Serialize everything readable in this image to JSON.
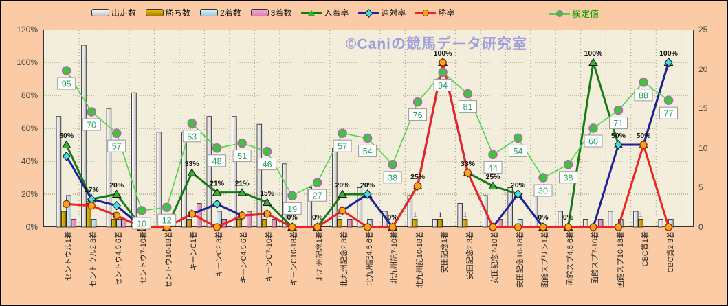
{
  "watermark": "©Caniの競馬データ研究室",
  "legend": [
    {
      "key": "runs",
      "label": "出走数",
      "type": "bar"
    },
    {
      "key": "wins",
      "label": "勝ち数",
      "type": "bar"
    },
    {
      "key": "second",
      "label": "2着数",
      "type": "bar"
    },
    {
      "key": "third",
      "label": "3着数",
      "type": "bar"
    },
    {
      "key": "place",
      "label": "入着率",
      "type": "line",
      "marker": "triangle"
    },
    {
      "key": "quinella",
      "label": "連対率",
      "type": "line",
      "marker": "diamond"
    },
    {
      "key": "winrate",
      "label": "勝率",
      "type": "line",
      "marker": "circle"
    },
    {
      "key": "kentei",
      "label": "検定値",
      "type": "line",
      "marker": "circle-green"
    }
  ],
  "axes": {
    "left_ticks": [
      "0%",
      "20%",
      "40%",
      "60%",
      "80%",
      "100%",
      "120%"
    ],
    "left_values": [
      0,
      20,
      40,
      60,
      80,
      100,
      120
    ],
    "right_ticks": [
      "0",
      "5",
      "10",
      "15",
      "20",
      "25"
    ],
    "right_values": [
      0,
      5,
      10,
      15,
      20,
      25
    ]
  },
  "chart_data": {
    "type": "bar",
    "subtype": "combo-bar-line",
    "categories": [
      "セントウル1着",
      "セントウル2,3着",
      "セントウ4,5,6着",
      "セントウ7-10着",
      "セントウ10-18着",
      "キーンC1着",
      "キーンC2,3着",
      "キーンC4,5,6着",
      "キーンC7-10着",
      "キーンC10-18着",
      "北九州記念1着",
      "北九州記念2,3着",
      "北九州記4,5,6着",
      "北九州記7-10着",
      "北九州記10-18着",
      "安田記念1着",
      "安田記念2,3着",
      "安田記念7-10着",
      "安田記念10-18着",
      "函館スプリン1着",
      "函館スプ4,5,6着",
      "函館スプ7-10着",
      "函館スプ10-18着",
      "CBC賞1着",
      "CBC賞2,3着"
    ],
    "title": "",
    "xlabel": "",
    "ylabel_left": "",
    "ylabel_right": "",
    "ylim_left_pct": [
      0,
      120
    ],
    "ylim_right_count": [
      0,
      25
    ],
    "grid": "horizontal-dotted-and-vertical-dashed",
    "series": [
      {
        "name": "出走数",
        "type": "bar",
        "axis": "right",
        "values": [
          14,
          23,
          15,
          17,
          12,
          12,
          14,
          14,
          13,
          8,
          5,
          10,
          5,
          2,
          4,
          1,
          3,
          4,
          5,
          4,
          2,
          1,
          2,
          2,
          1
        ]
      },
      {
        "name": "勝ち数",
        "type": "bar",
        "axis": "right",
        "values": [
          2,
          3,
          1,
          0,
          0,
          1,
          0,
          1,
          1,
          0,
          0,
          1,
          0,
          0,
          1,
          1,
          1,
          0,
          0,
          0,
          0,
          0,
          0,
          1,
          0
        ]
      },
      {
        "name": "2着数",
        "type": "bar",
        "axis": "right",
        "values": [
          4,
          1,
          1,
          0,
          0,
          0,
          2,
          0,
          0,
          0,
          0,
          0,
          1,
          0,
          0,
          0,
          0,
          0,
          1,
          0,
          0,
          0,
          1,
          0,
          1
        ]
      },
      {
        "name": "3着数",
        "type": "bar",
        "axis": "right",
        "values": [
          1,
          0,
          1,
          0,
          0,
          3,
          1,
          2,
          1,
          0,
          0,
          1,
          0,
          0,
          0,
          0,
          0,
          1,
          0,
          0,
          0,
          1,
          0,
          0,
          0
        ]
      },
      {
        "name": "入着率",
        "type": "line",
        "axis": "left_pct",
        "marker": "triangle",
        "values": [
          50,
          17,
          20,
          0,
          0,
          33,
          21,
          21,
          15,
          0,
          0,
          20,
          20,
          0,
          25,
          100,
          33,
          25,
          20,
          0,
          0,
          100,
          50,
          50,
          100
        ]
      },
      {
        "name": "連対率",
        "type": "line",
        "axis": "left_pct",
        "marker": "diamond",
        "values": [
          43,
          17,
          13,
          0,
          0,
          8,
          14,
          7,
          8,
          0,
          0,
          10,
          20,
          0,
          25,
          100,
          33,
          0,
          20,
          0,
          0,
          0,
          50,
          50,
          100
        ]
      },
      {
        "name": "勝率",
        "type": "line",
        "axis": "left_pct",
        "marker": "circle",
        "values": [
          14,
          13,
          7,
          0,
          0,
          8,
          0,
          7,
          8,
          0,
          0,
          10,
          0,
          0,
          25,
          100,
          33,
          0,
          0,
          0,
          0,
          0,
          0,
          50,
          0
        ]
      },
      {
        "name": "検定値",
        "type": "line",
        "axis": "left_pct",
        "marker": "circle-green",
        "values": [
          95,
          70,
          57,
          10,
          12,
          63,
          48,
          51,
          46,
          19,
          27,
          57,
          54,
          38,
          76,
          94,
          81,
          44,
          54,
          30,
          38,
          60,
          71,
          88,
          77
        ]
      }
    ],
    "point_pct_labels": [
      "50%",
      "17%",
      "20%",
      "",
      "",
      "33%",
      "21%",
      "21%",
      "15%",
      "0%",
      "0%",
      "20%",
      "20%",
      "0%",
      "25%",
      "100%",
      "33%",
      "25%",
      "20%",
      "0%",
      "0%",
      "100%",
      "50%",
      "50%",
      "100%"
    ],
    "point_count_labels": [
      "",
      "",
      "1",
      "",
      "",
      "1",
      "",
      "1",
      "1",
      "",
      "",
      "1",
      "",
      "",
      "1",
      "1",
      "1",
      "",
      "",
      "",
      "",
      "",
      "",
      "1",
      ""
    ],
    "kentei_labels": [
      "95",
      "70",
      "57",
      "10",
      "12",
      "63",
      "48",
      "51",
      "46",
      "19",
      "27",
      "57",
      "54",
      "38",
      "76",
      "94",
      "81",
      "44",
      "54",
      "30",
      "38",
      "60",
      "71",
      "88",
      "77"
    ],
    "legend_position": "top"
  },
  "colors": {
    "background": "#FACBA4",
    "plot_background": "#F3EEDB",
    "grid_h": "#8F8F72",
    "grid_v": "#A39579",
    "bar_runs": [
      "#FFFFFF",
      "#C2C2C2"
    ],
    "bar_wins": [
      "#F2C200",
      "#A87E00"
    ],
    "bar_second": [
      "#D9F0F6",
      "#A2CBD9"
    ],
    "bar_third": [
      "#F7ACD0",
      "#DC7FB2"
    ],
    "line_place": "#157A15",
    "marker_place": "#35B235",
    "line_quinella": "#1F1F99",
    "marker_quinella": "#40DCE8",
    "line_winrate": "#EE2222",
    "marker_winrate": "#FFA21E",
    "marker_winrate_edge": "#8B2E00",
    "line_kentei": "#4FD34F",
    "marker_kentei": "#38C838",
    "marker_kentei_edge": "#C455C4",
    "kentei_text": "#2E9E62",
    "label_text": "#111111",
    "axis_text": "#444444",
    "watermark_text": "#8A8ADF",
    "legend_kentei_text": "#00A000"
  }
}
